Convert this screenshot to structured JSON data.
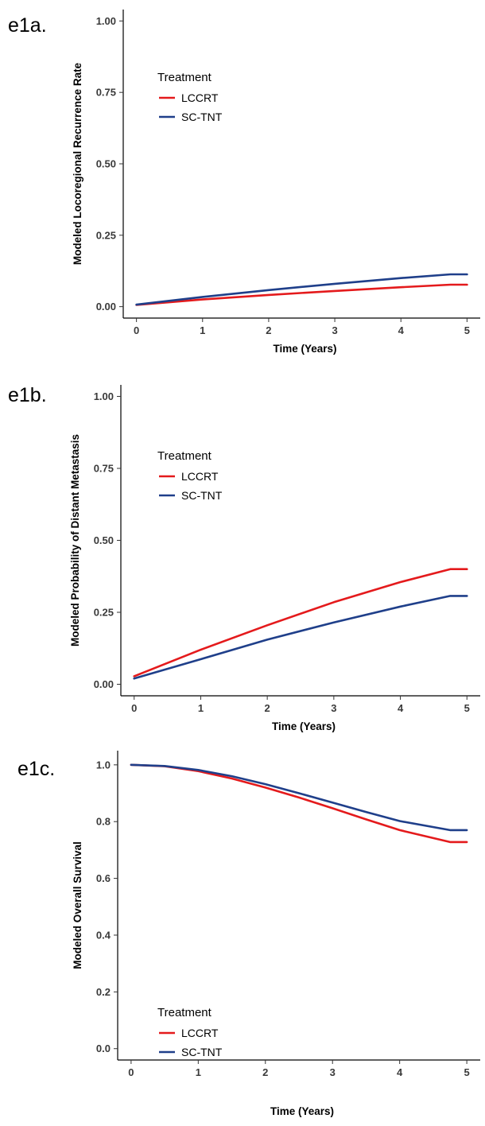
{
  "chart_data": [
    {
      "panel_label": "e1a.",
      "type": "line",
      "xlabel": "Time (Years)",
      "ylabel": "Modeled Locoregional Recurrence Rate",
      "xlim": [
        -0.2,
        5.2
      ],
      "ylim": [
        -0.04,
        1.04
      ],
      "x_ticks": [
        0,
        1,
        2,
        3,
        4,
        5
      ],
      "y_ticks": [
        0.0,
        0.25,
        0.5,
        0.75,
        1.0
      ],
      "y_tick_labels": [
        "0.00",
        "0.25",
        "0.50",
        "0.75",
        "1.00"
      ],
      "grid": false,
      "legend_title": "Treatment",
      "legend_position": "top-left",
      "series": [
        {
          "name": "LCCRT",
          "color": "#e41a1c",
          "x": [
            0,
            1,
            2,
            3,
            4,
            4.75,
            5
          ],
          "y": [
            0.006,
            0.025,
            0.041,
            0.055,
            0.068,
            0.077,
            0.077
          ]
        },
        {
          "name": "SC-TNT",
          "color": "#1f3f8a",
          "x": [
            0,
            1,
            2,
            3,
            4,
            4.75,
            5
          ],
          "y": [
            0.007,
            0.034,
            0.058,
            0.08,
            0.1,
            0.113,
            0.113
          ]
        }
      ]
    },
    {
      "panel_label": "e1b.",
      "type": "line",
      "xlabel": "Time (Years)",
      "ylabel": "Modeled Probability of Distant Metastasis",
      "xlim": [
        -0.2,
        5.2
      ],
      "ylim": [
        -0.04,
        1.04
      ],
      "x_ticks": [
        0,
        1,
        2,
        3,
        4,
        5
      ],
      "y_ticks": [
        0.0,
        0.25,
        0.5,
        0.75,
        1.0
      ],
      "y_tick_labels": [
        "0.00",
        "0.25",
        "0.50",
        "0.75",
        "1.00"
      ],
      "grid": false,
      "legend_title": "Treatment",
      "legend_position": "top-left",
      "series": [
        {
          "name": "LCCRT",
          "color": "#e41a1c",
          "x": [
            0,
            1,
            2,
            3,
            4,
            4.75,
            5
          ],
          "y": [
            0.028,
            0.12,
            0.205,
            0.285,
            0.355,
            0.4,
            0.4
          ]
        },
        {
          "name": "SC-TNT",
          "color": "#1f3f8a",
          "x": [
            0,
            1,
            2,
            3,
            4,
            4.75,
            5
          ],
          "y": [
            0.02,
            0.087,
            0.155,
            0.215,
            0.27,
            0.307,
            0.307
          ]
        }
      ]
    },
    {
      "panel_label": "e1c.",
      "type": "line",
      "xlabel": "Time (Years)",
      "ylabel": "Modeled Overall Survival",
      "xlim": [
        -0.2,
        5.2
      ],
      "ylim": [
        -0.04,
        1.05
      ],
      "x_ticks": [
        0,
        1,
        2,
        3,
        4,
        5
      ],
      "y_ticks": [
        0.0,
        0.2,
        0.4,
        0.6,
        0.8,
        1.0
      ],
      "y_tick_labels": [
        "0.0",
        "0.2",
        "0.4",
        "0.6",
        "0.8",
        "1.0"
      ],
      "grid": false,
      "legend_title": "Treatment",
      "legend_position": "bottom-left",
      "series": [
        {
          "name": "LCCRT",
          "color": "#e41a1c",
          "x": [
            0,
            0.5,
            1,
            1.5,
            2,
            2.5,
            3,
            3.5,
            4,
            4.75,
            5
          ],
          "y": [
            1.0,
            0.995,
            0.978,
            0.952,
            0.92,
            0.885,
            0.847,
            0.808,
            0.77,
            0.728,
            0.728
          ]
        },
        {
          "name": "SC-TNT",
          "color": "#1f3f8a",
          "x": [
            0,
            0.5,
            1,
            1.5,
            2,
            2.5,
            3,
            3.5,
            4,
            4.75,
            5
          ],
          "y": [
            1.0,
            0.996,
            0.982,
            0.96,
            0.932,
            0.9,
            0.867,
            0.834,
            0.802,
            0.77,
            0.77
          ]
        }
      ]
    }
  ]
}
